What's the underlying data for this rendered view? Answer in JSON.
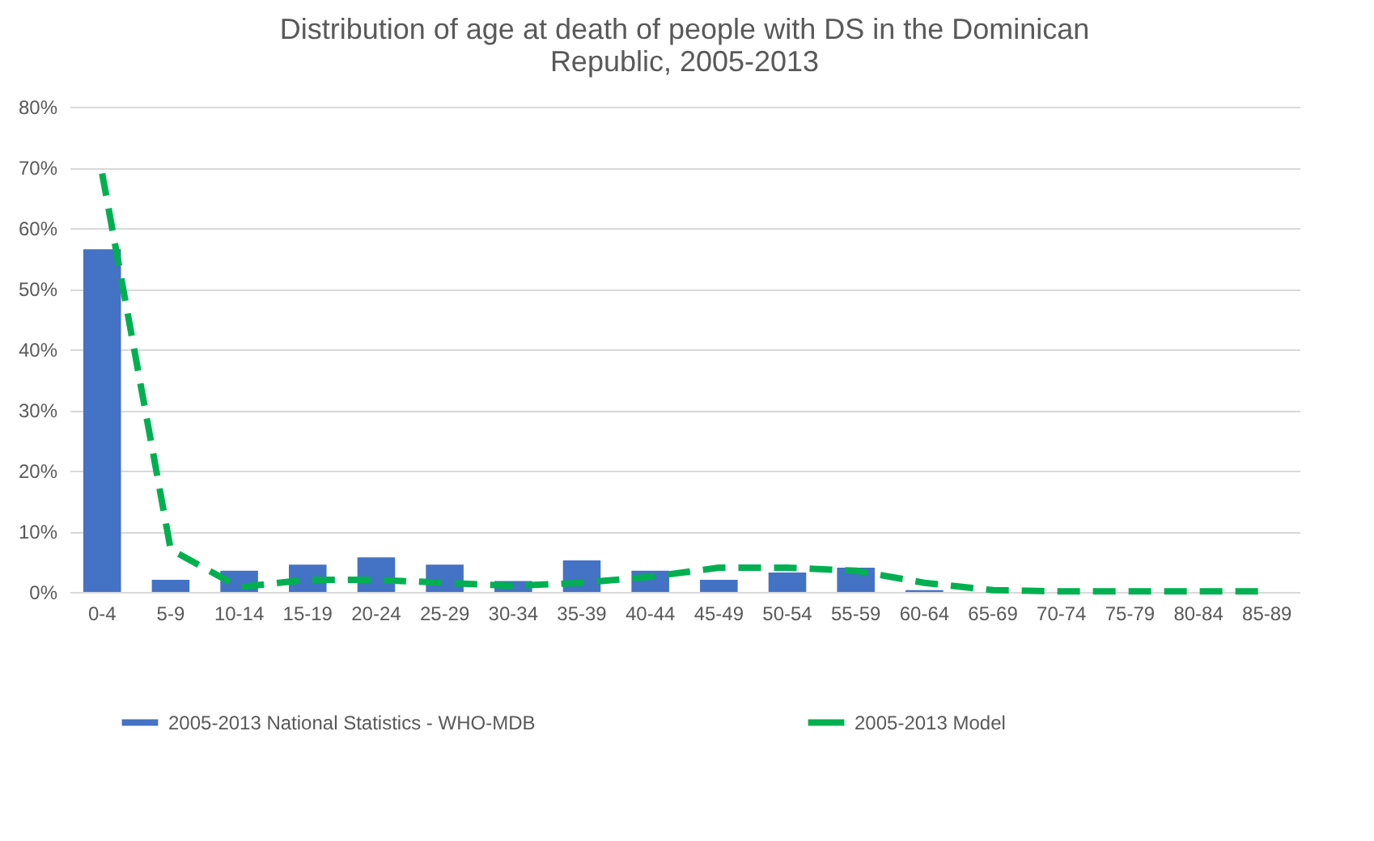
{
  "chart_data": {
    "type": "bar",
    "title": [
      "Distribution of age at death of people with DS in the Dominican",
      "Republic, 2005-2013"
    ],
    "categories": [
      "0-4",
      "5-9",
      "10-14",
      "15-19",
      "20-24",
      "25-29",
      "30-34",
      "35-39",
      "40-44",
      "45-49",
      "50-54",
      "55-59",
      "60-64",
      "65-69",
      "70-74",
      "75-79",
      "80-84",
      "85-89"
    ],
    "series": [
      {
        "name": "2005-2013 National Statistics - WHO-MDB",
        "color": "#4472c4",
        "values": [
          56.5,
          2,
          3.5,
          4.5,
          5.7,
          4.5,
          1.8,
          5.2,
          3.5,
          2,
          3.2,
          4,
          0.3,
          0,
          0,
          0,
          0,
          0
        ]
      },
      {
        "name": "2005-2013 Model",
        "type": "line",
        "color": "#00b050",
        "line_style": "dashed",
        "values": [
          69,
          7,
          0.8,
          2,
          2,
          1.5,
          1,
          1.5,
          2.5,
          4,
          4,
          3.5,
          1.5,
          0.3,
          0.1,
          0.1,
          0.1,
          0.1
        ]
      }
    ],
    "ylim": [
      0,
      80
    ],
    "yticks": [
      {
        "value": 0,
        "label": "0%"
      },
      {
        "value": 10,
        "label": "10%"
      },
      {
        "value": 20,
        "label": "20%"
      },
      {
        "value": 30,
        "label": "30%"
      },
      {
        "value": 40,
        "label": "40%"
      },
      {
        "value": 50,
        "label": "50%"
      },
      {
        "value": 60,
        "label": "60%"
      },
      {
        "value": 70,
        "label": "70%"
      },
      {
        "value": 80,
        "label": "80%"
      }
    ],
    "grid": "y",
    "legend": "bottom"
  }
}
